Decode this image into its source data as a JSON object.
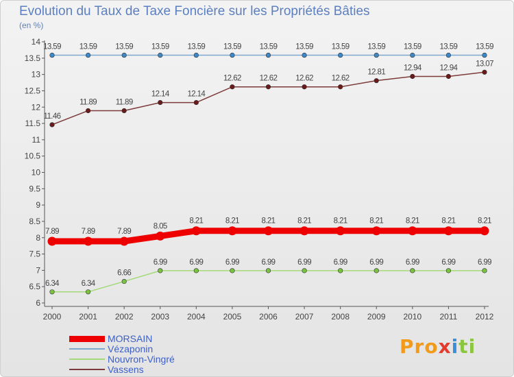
{
  "chart_data": {
    "type": "line",
    "title": "Evolution du Taux de Taxe Foncière sur les Propriétés Bâties",
    "unit_label": "(en %)",
    "x": [
      "2000",
      "2001",
      "2002",
      "2003",
      "2004",
      "2005",
      "2006",
      "2007",
      "2008",
      "2009",
      "2010",
      "2011",
      "2012"
    ],
    "ylim": [
      6,
      14
    ],
    "ytick_step": 0.5,
    "grid": false,
    "legend_position": "bottom-left",
    "series": [
      {
        "name": "Vézaponin",
        "color": "#7fa8cf",
        "marker": "#3f88c8",
        "values": [
          13.59,
          13.59,
          13.59,
          13.59,
          13.59,
          13.59,
          13.59,
          13.59,
          13.59,
          13.59,
          13.59,
          13.59,
          13.59
        ],
        "labels": [
          "13.59",
          "13.59",
          "13.59",
          "13.59",
          "13.59",
          "13.59",
          "13.59",
          "13.59",
          "13.59",
          "13.59",
          "13.59",
          "13.59",
          "13.59"
        ]
      },
      {
        "name": "Vassens",
        "color": "#7d3a3a",
        "marker": "#6b1a1a",
        "values": [
          11.46,
          11.89,
          11.89,
          12.14,
          12.14,
          12.62,
          12.62,
          12.62,
          12.62,
          12.81,
          12.94,
          12.94,
          13.07
        ],
        "labels": [
          "11.46",
          "11.89",
          "11.89",
          "12.14",
          "12.14",
          "12.62",
          "12.62",
          "12.62",
          "12.62",
          "12.81",
          "12.94",
          "12.94",
          "13.07"
        ]
      },
      {
        "name": "MORSAIN",
        "color": "#ee0000",
        "marker": "#ee0000",
        "values": [
          7.89,
          7.89,
          7.89,
          8.05,
          8.21,
          8.21,
          8.21,
          8.21,
          8.21,
          8.21,
          8.21,
          8.21,
          8.21
        ],
        "labels": [
          "7.89",
          "7.89",
          "7.89",
          "8.05",
          "8.21",
          "8.21",
          "8.21",
          "8.21",
          "8.21",
          "8.21",
          "8.21",
          "8.21",
          "8.21"
        ]
      },
      {
        "name": "Nouvron-Vingré",
        "color": "#a3d977",
        "marker": "#7cc242",
        "values": [
          6.34,
          6.34,
          6.66,
          6.99,
          6.99,
          6.99,
          6.99,
          6.99,
          6.99,
          6.99,
          6.99,
          6.99,
          6.99
        ],
        "labels": [
          "6.34",
          "6.34",
          "6.66",
          "6.99",
          "6.99",
          "6.99",
          "6.99",
          "6.99",
          "6.99",
          "6.99",
          "6.99",
          "6.99",
          "6.99"
        ]
      }
    ]
  },
  "legend": [
    {
      "name": "MORSAIN",
      "color": "#ee0000"
    },
    {
      "name": "Vézaponin",
      "color": "#7fa8cf"
    },
    {
      "name": "Nouvron-Vingré",
      "color": "#a3d977"
    },
    {
      "name": "Vassens",
      "color": "#7d3a3a"
    }
  ],
  "logo": {
    "p1": "Pro",
    "p2": "x",
    "p3": "i",
    "p4": "ti"
  }
}
